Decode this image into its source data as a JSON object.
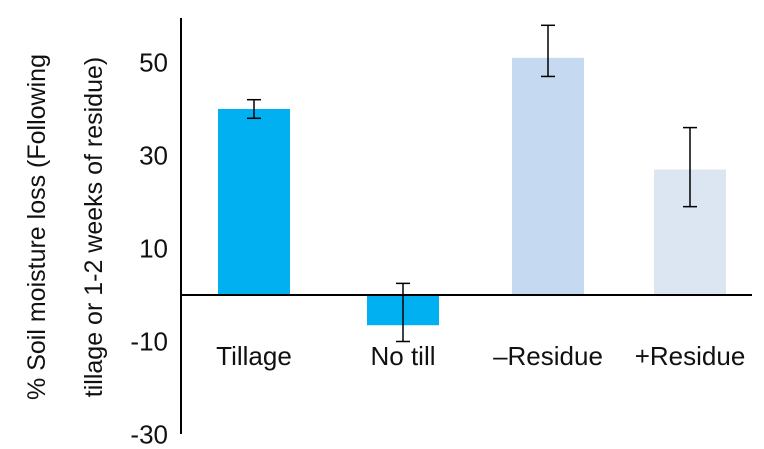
{
  "chart_data": {
    "type": "bar",
    "title": "",
    "xlabel": "",
    "ylabel": [
      "% Soil moisture loss (Following",
      "tillage or 1-2 weeks of residue)"
    ],
    "categories": [
      "Tillage",
      "No till",
      "–Residue",
      "+Residue"
    ],
    "values": [
      40,
      -6.5,
      51,
      27
    ],
    "error_bars": [
      [
        38,
        42
      ],
      [
        -10,
        2.5
      ],
      [
        47,
        58
      ],
      [
        19,
        36
      ]
    ],
    "colors": [
      "#00b0f0",
      "#00b0f0",
      "#c5d9f0",
      "#dce6f2"
    ],
    "ylim": [
      -30,
      60
    ],
    "yticks": [
      -30,
      -10,
      10,
      30,
      50
    ],
    "ytick_labels": [
      "-30",
      "-10",
      "10",
      "30",
      "50"
    ],
    "grid": false,
    "legend": "none"
  }
}
